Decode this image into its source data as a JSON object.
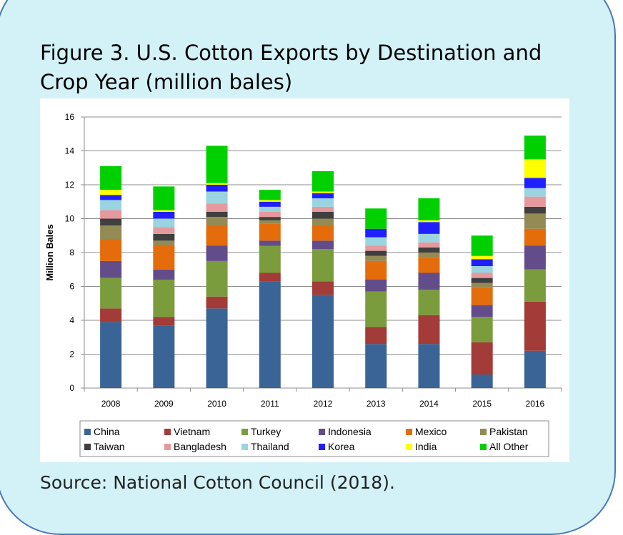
{
  "figure": {
    "title_line1": "Figure 3. U.S. Cotton Exports by Destination and",
    "title_line2": "Crop Year (million bales)",
    "source": "Source: National Cotton Council (2018)."
  },
  "chart_data": {
    "type": "bar",
    "stacked": true,
    "title": "Figure 3. U.S. Cotton Exports by Destination and Crop Year (million bales)",
    "xlabel": "",
    "ylabel": "Million Bales",
    "ylim": [
      0,
      16
    ],
    "yticks": [
      0,
      2,
      4,
      6,
      8,
      10,
      12,
      14,
      16
    ],
    "grid": true,
    "legend_position": "bottom",
    "categories": [
      "2008",
      "2009",
      "2010",
      "2011",
      "2012",
      "2013",
      "2014",
      "2015",
      "2016"
    ],
    "series": [
      {
        "name": "China",
        "color": "#3a6496",
        "values": [
          3.9,
          3.7,
          4.7,
          6.3,
          5.5,
          2.6,
          2.6,
          0.8,
          2.2
        ]
      },
      {
        "name": "Vietnam",
        "color": "#a33b38",
        "values": [
          0.8,
          0.5,
          0.7,
          0.5,
          0.8,
          1.0,
          1.7,
          1.9,
          2.9
        ]
      },
      {
        "name": "Turkey",
        "color": "#7a9c3c",
        "values": [
          1.8,
          2.2,
          2.1,
          1.6,
          1.9,
          2.1,
          1.5,
          1.5,
          1.9
        ]
      },
      {
        "name": "Indonesia",
        "color": "#634c8a",
        "values": [
          1.0,
          0.6,
          0.9,
          0.3,
          0.5,
          0.7,
          1.0,
          0.7,
          1.4
        ]
      },
      {
        "name": "Mexico",
        "color": "#e46c0a",
        "values": [
          1.3,
          1.4,
          1.2,
          1.0,
          0.9,
          1.1,
          0.9,
          1.0,
          1.0
        ]
      },
      {
        "name": "Pakistan",
        "color": "#948a54",
        "values": [
          0.8,
          0.3,
          0.5,
          0.2,
          0.4,
          0.3,
          0.3,
          0.3,
          0.9
        ]
      },
      {
        "name": "Taiwan",
        "color": "#3f3f3f",
        "values": [
          0.4,
          0.4,
          0.3,
          0.2,
          0.4,
          0.3,
          0.3,
          0.3,
          0.4
        ]
      },
      {
        "name": "Bangladesh",
        "color": "#e6999c",
        "values": [
          0.5,
          0.4,
          0.5,
          0.3,
          0.3,
          0.3,
          0.3,
          0.3,
          0.6
        ]
      },
      {
        "name": "Thailand",
        "color": "#9ad4e0",
        "values": [
          0.6,
          0.5,
          0.7,
          0.3,
          0.5,
          0.5,
          0.5,
          0.4,
          0.5
        ]
      },
      {
        "name": "Korea",
        "color": "#2020ff",
        "values": [
          0.3,
          0.4,
          0.4,
          0.3,
          0.3,
          0.5,
          0.7,
          0.4,
          0.6
        ]
      },
      {
        "name": "India",
        "color": "#ffff00",
        "values": [
          0.3,
          0.1,
          0.1,
          0.1,
          0.1,
          0.0,
          0.1,
          0.2,
          1.1
        ]
      },
      {
        "name": "All Other",
        "color": "#00d000",
        "values": [
          1.4,
          1.4,
          2.2,
          0.6,
          1.2,
          1.2,
          1.3,
          1.2,
          1.4
        ]
      }
    ]
  }
}
